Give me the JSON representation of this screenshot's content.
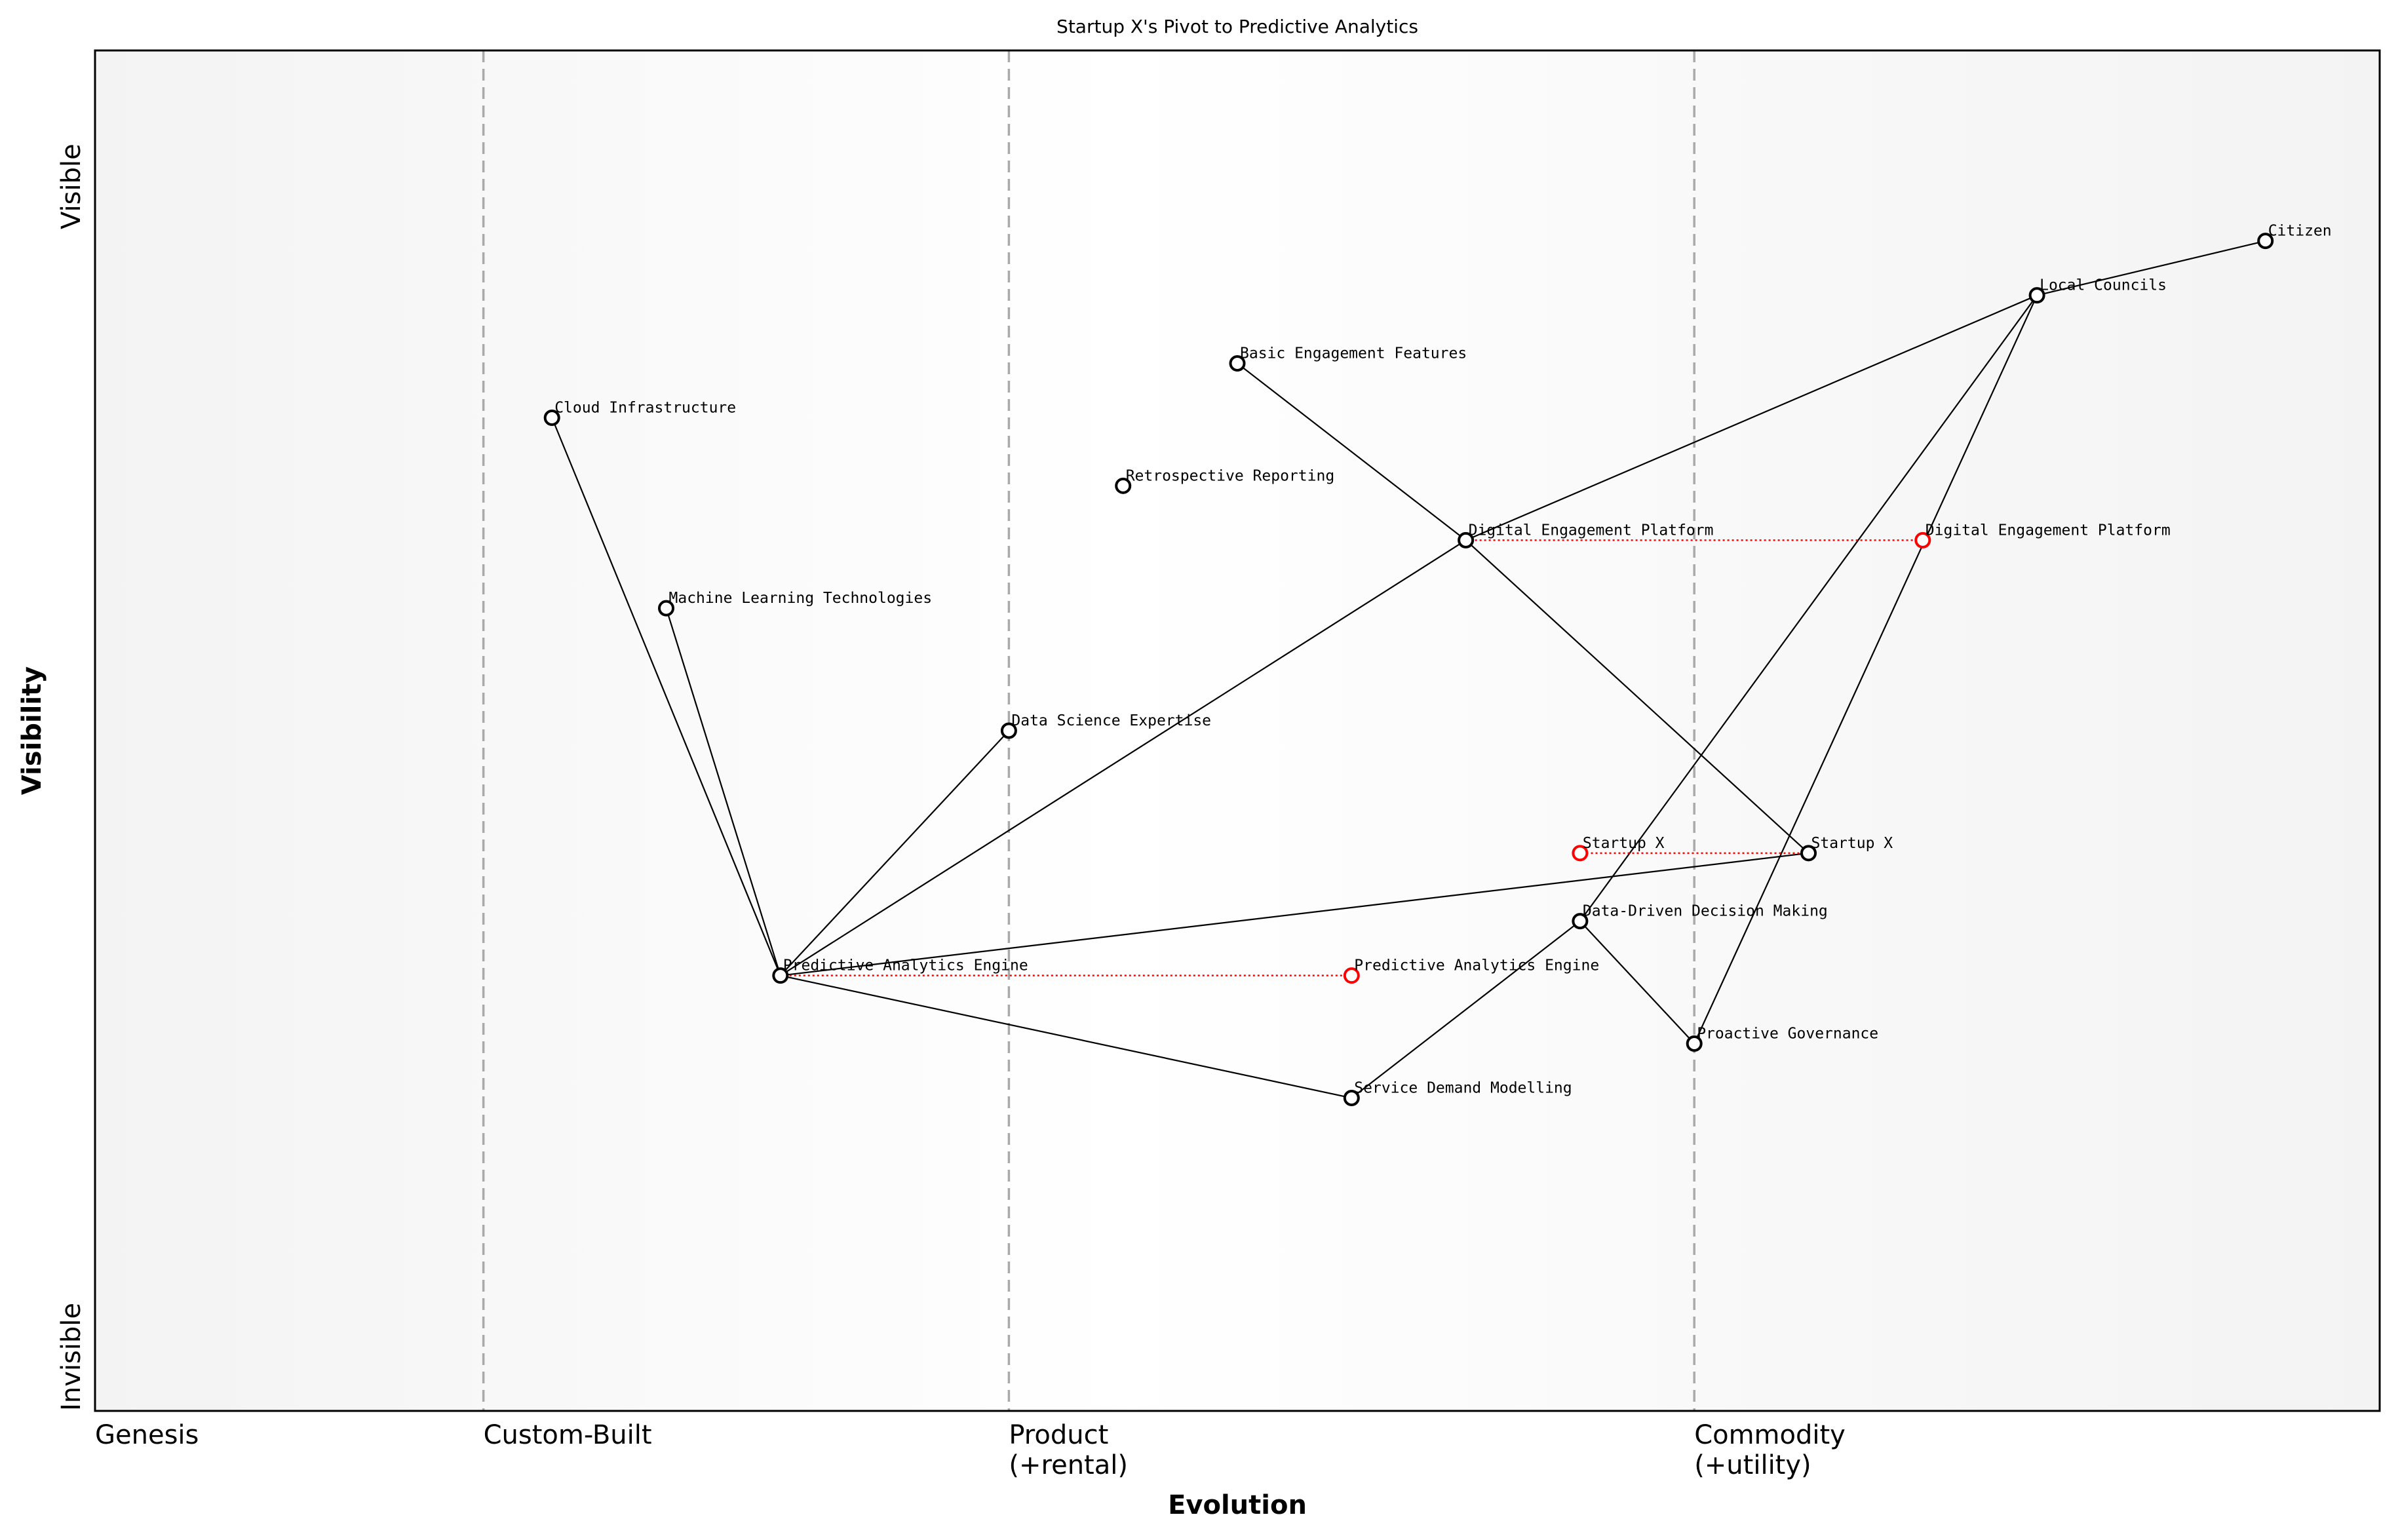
{
  "chart_data": {
    "type": "wardley-map",
    "title": "Startup X's Pivot to Predictive Analytics",
    "xlabel": "Evolution",
    "ylabel": "Visibility",
    "xlim": [
      0,
      1
    ],
    "ylim": [
      0,
      1
    ],
    "y_ticks": [
      {
        "label": "Invisible",
        "value": 0
      },
      {
        "label": "Visible",
        "value": 0.9
      }
    ],
    "stages": [
      {
        "label": "Genesis",
        "x": 0
      },
      {
        "label": "Custom-Built",
        "x": 0.17
      },
      {
        "label": "Product\n(+rental)",
        "x": 0.4
      },
      {
        "label": "Commodity\n(+utility)",
        "x": 0.7
      }
    ],
    "components": [
      {
        "name": "Citizen",
        "x": 0.95,
        "y": 0.86
      },
      {
        "name": "Local Councils",
        "x": 0.85,
        "y": 0.82
      },
      {
        "name": "Basic Engagement Features",
        "x": 0.5,
        "y": 0.77
      },
      {
        "name": "Cloud Infrastructure",
        "x": 0.2,
        "y": 0.73
      },
      {
        "name": "Retrospective Reporting",
        "x": 0.45,
        "y": 0.68
      },
      {
        "name": "Digital Engagement Platform",
        "x": 0.6,
        "y": 0.64
      },
      {
        "name": "Machine Learning Technologies",
        "x": 0.25,
        "y": 0.59
      },
      {
        "name": "Data Science Expertise",
        "x": 0.4,
        "y": 0.5
      },
      {
        "name": "Startup X",
        "x": 0.75,
        "y": 0.41
      },
      {
        "name": "Data-Driven Decision Making",
        "x": 0.65,
        "y": 0.36
      },
      {
        "name": "Predictive Analytics Engine",
        "x": 0.3,
        "y": 0.32
      },
      {
        "name": "Proactive Governance",
        "x": 0.7,
        "y": 0.27
      },
      {
        "name": "Service Demand Modelling",
        "x": 0.55,
        "y": 0.23
      }
    ],
    "evolved": [
      {
        "name": "Startup X",
        "from": 0.75,
        "x": 0.65,
        "y": 0.41
      },
      {
        "name": "Digital Engagement Platform",
        "from": 0.6,
        "x": 0.8,
        "y": 0.64
      },
      {
        "name": "Predictive Analytics Engine",
        "from": 0.3,
        "x": 0.55,
        "y": 0.32
      }
    ],
    "links": [
      [
        "Citizen",
        "Local Councils"
      ],
      [
        "Local Councils",
        "Digital Engagement Platform"
      ],
      [
        "Local Councils",
        "Data-Driven Decision Making"
      ],
      [
        "Local Councils",
        "Proactive Governance"
      ],
      [
        "Basic Engagement Features",
        "Digital Engagement Platform"
      ],
      [
        "Digital Engagement Platform",
        "Startup X"
      ],
      [
        "Digital Engagement Platform",
        "Predictive Analytics Engine"
      ],
      [
        "Cloud Infrastructure",
        "Predictive Analytics Engine"
      ],
      [
        "Machine Learning Technologies",
        "Predictive Analytics Engine"
      ],
      [
        "Data Science Expertise",
        "Predictive Analytics Engine"
      ],
      [
        "Startup X",
        "Predictive Analytics Engine"
      ],
      [
        "Predictive Analytics Engine",
        "Service Demand Modelling"
      ],
      [
        "Service Demand Modelling",
        "Data-Driven Decision Making"
      ],
      [
        "Data-Driven Decision Making",
        "Proactive Governance"
      ]
    ],
    "colors": {
      "component": "#000000",
      "evolved": "#ff0000",
      "stage_line": "#aaaaaa"
    }
  }
}
